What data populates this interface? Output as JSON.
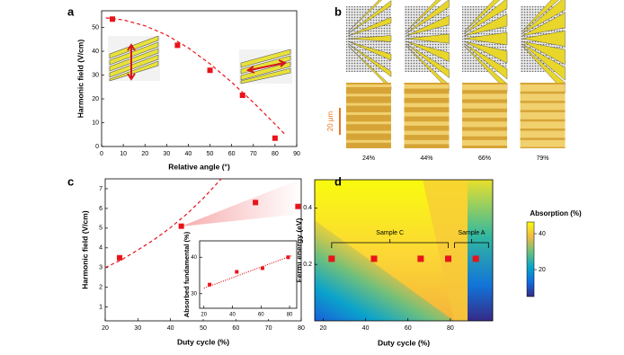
{
  "chart_data": [
    {
      "panel": "a",
      "type": "scatter",
      "xlabel": "Relative angle (°)",
      "ylabel": "Harmonic field (V/cm)",
      "x": [
        5,
        35,
        50,
        65,
        80
      ],
      "values": [
        53.5,
        42.5,
        32,
        21.5,
        3.5
      ],
      "color": "#e8141a",
      "fit": {
        "x": [
          2,
          10,
          20,
          30,
          40,
          50,
          60,
          70,
          80,
          85
        ],
        "values": [
          54,
          53.2,
          50.7,
          46.8,
          41.4,
          34.7,
          27,
          18.5,
          9.4,
          4.7
        ]
      },
      "xlim": [
        0,
        90
      ],
      "xticks": [
        0,
        10,
        20,
        30,
        40,
        50,
        60,
        70,
        80,
        90
      ],
      "ylim": [
        0,
        57
      ],
      "yticks": [
        0,
        10,
        20,
        30,
        40,
        50
      ]
    },
    {
      "panel": "b",
      "type": "image",
      "labels": [
        "24%",
        "44%",
        "66%",
        "79%"
      ],
      "scale_bar": "20 μm"
    },
    {
      "panel": "c",
      "type": "scatter",
      "xlabel": "Duty cycle (%)",
      "ylabel": "Harmonic field (V/cm)",
      "x": [
        24.4,
        43.3,
        66,
        79
      ],
      "values": [
        3.5,
        5.1,
        6.3,
        6.1
      ],
      "color": "#e8141a",
      "fit": {
        "x": [
          20,
          25,
          30,
          35,
          40,
          45,
          50,
          55.5
        ],
        "values": [
          3.0,
          3.4,
          3.89,
          4.42,
          5.03,
          5.72,
          6.51,
          7.5
        ]
      },
      "xlim": [
        20,
        80
      ],
      "xticks": [
        20,
        30,
        40,
        50,
        60,
        70,
        80
      ],
      "ylim": [
        0.3,
        7.5
      ],
      "yticks": [
        1,
        2,
        3,
        4,
        5,
        6,
        7
      ],
      "inset": {
        "type": "scatter",
        "ylabel": "Absorbed fundamental (%)",
        "x": [
          24,
          43,
          61,
          79
        ],
        "values": [
          32.5,
          36,
          37,
          40
        ],
        "color": "#e8141a",
        "fit": {
          "x": [
            20,
            82
          ],
          "values": [
            31.5,
            40.5
          ]
        },
        "xlim": [
          17,
          85
        ],
        "xticks": [
          20,
          40,
          60,
          80
        ],
        "ylim": [
          26,
          44.5
        ],
        "yticks": [
          30,
          40
        ]
      }
    },
    {
      "panel": "d",
      "type": "heatmap",
      "xlabel": "Duty cycle (%)",
      "ylabel": "Fermi energy (eV)",
      "x": [
        24,
        44,
        66,
        79,
        92
      ],
      "values": [
        0.22,
        0.22,
        0.22,
        0.22,
        0.22
      ],
      "color": "#e8141a",
      "xlim": [
        16,
        100
      ],
      "xticks": [
        20,
        40,
        60,
        80
      ],
      "ylim": [
        0,
        0.5
      ],
      "yticks": [
        0.2,
        0.4
      ],
      "annotations": [
        {
          "text": "Sample C",
          "from": 24,
          "to": 79
        },
        {
          "text": "Sample A",
          "from": 82,
          "to": 98
        }
      ],
      "colorbar": {
        "title": "Absorption (%)",
        "lim": [
          5,
          46.5
        ],
        "ticks": [
          20,
          40
        ]
      }
    }
  ]
}
